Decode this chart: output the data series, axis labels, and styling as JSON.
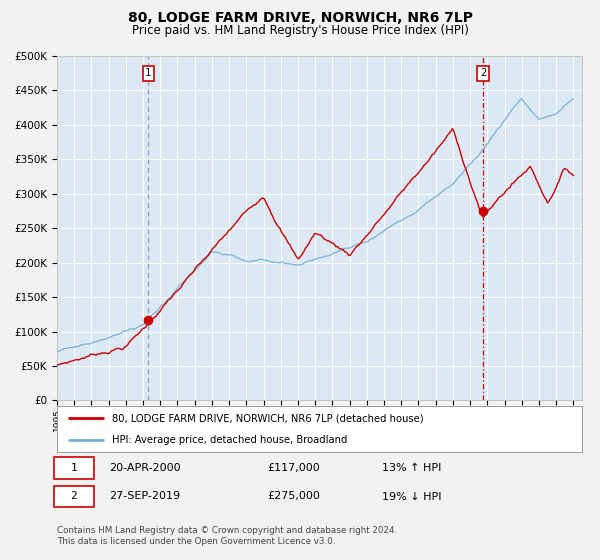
{
  "title": "80, LODGE FARM DRIVE, NORWICH, NR6 7LP",
  "subtitle": "Price paid vs. HM Land Registry's House Price Index (HPI)",
  "title_fontsize": 10,
  "subtitle_fontsize": 8.5,
  "background_color": "#dce9f5",
  "fig_bg_color": "#f2f2f2",
  "grid_color": "#ffffff",
  "line1_color": "#cc0000",
  "line2_color": "#7ab0d4",
  "marker_color": "#cc0000",
  "vline1_color": "#9999bb",
  "vline2_color": "#cc0000",
  "ylim": [
    0,
    500000
  ],
  "yticks": [
    0,
    50000,
    100000,
    150000,
    200000,
    250000,
    300000,
    350000,
    400000,
    450000,
    500000
  ],
  "xlim_start": 1995,
  "xlim_end": 2025.5,
  "point1_x": 2000.3,
  "point1_y": 117000,
  "point1_label": "1",
  "point2_x": 2019.75,
  "point2_y": 275000,
  "point2_label": "2",
  "legend_entries": [
    "80, LODGE FARM DRIVE, NORWICH, NR6 7LP (detached house)",
    "HPI: Average price, detached house, Broadland"
  ],
  "annotation1_date": "20-APR-2000",
  "annotation1_price": "£117,000",
  "annotation1_hpi": "13% ↑ HPI",
  "annotation2_date": "27-SEP-2019",
  "annotation2_price": "£275,000",
  "annotation2_hpi": "19% ↓ HPI",
  "footer": "Contains HM Land Registry data © Crown copyright and database right 2024.\nThis data is licensed under the Open Government Licence v3.0."
}
